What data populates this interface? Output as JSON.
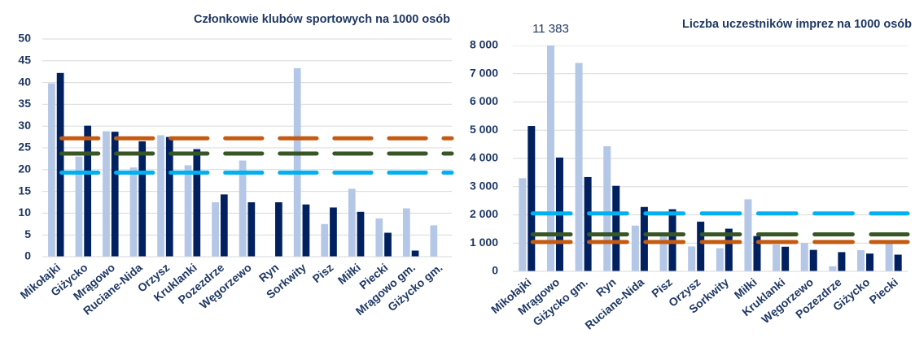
{
  "chart_data": [
    {
      "type": "bar",
      "title": "Członkowie klubów sportowych na 1000 osób",
      "categories": [
        "Mikołajki",
        "Giżycko",
        "Mrągowo",
        "Ruciane-Nida",
        "Orzysz",
        "Kruklanki",
        "Pozezdrze",
        "Węgorzewo",
        "Ryn",
        "Sorkwity",
        "Pisz",
        "Miłki",
        "Piecki",
        "Mrągowo gm.",
        "Giżycko gm."
      ],
      "series": [
        {
          "color": "#b4c7e7",
          "values": [
            39.8,
            23,
            28.8,
            20.5,
            27.9,
            21,
            12.5,
            22.1,
            null,
            43.3,
            7.5,
            15.6,
            8.8,
            11.1,
            7.2
          ]
        },
        {
          "color": "#002060",
          "values": [
            42.2,
            30.1,
            28.7,
            26.5,
            27.5,
            24.7,
            14.3,
            12.5,
            12.5,
            12,
            11.3,
            10.3,
            5.5,
            1.4,
            null
          ]
        }
      ],
      "reference_lines": [
        {
          "color": "#c55a11",
          "value": 27.2
        },
        {
          "color": "#375623",
          "value": 23.7
        },
        {
          "color": "#00b0f0",
          "value": 19.3
        }
      ],
      "ylim": [
        0,
        50
      ],
      "yticks": [
        0,
        5,
        10,
        15,
        20,
        25,
        30,
        35,
        40,
        45,
        50
      ],
      "grid": true
    },
    {
      "type": "bar",
      "title": "Liczba uczestników imprez na 1000 osób",
      "categories": [
        "Mikołajki",
        "Mrągowo",
        "Giżycko gm.",
        "Ryn",
        "Ruciane-Nida",
        "Pisz",
        "Orzysz",
        "Sorkwity",
        "Miłki",
        "Kruklanki",
        "Węgorzewo",
        "Pozezdrze",
        "Giżycko",
        "Piecki"
      ],
      "series": [
        {
          "color": "#b4c7e7",
          "values": [
            3300,
            11383,
            7380,
            4430,
            1620,
            1300,
            880,
            820,
            2550,
            950,
            1000,
            180,
            750,
            1100
          ],
          "value_labels": [
            null,
            "11 383",
            null,
            null,
            null,
            null,
            null,
            null,
            null,
            null,
            null,
            null,
            null,
            null
          ]
        },
        {
          "color": "#002060",
          "values": [
            5150,
            4030,
            3340,
            3030,
            2280,
            2200,
            1760,
            1510,
            1250,
            870,
            760,
            680,
            630,
            590
          ]
        }
      ],
      "reference_lines": [
        {
          "color": "#00b0f0",
          "value": 2050
        },
        {
          "color": "#375623",
          "value": 1310
        },
        {
          "color": "#c55a11",
          "value": 1040
        }
      ],
      "ylim": [
        0,
        8000
      ],
      "yticks": [
        0,
        {
          "value": 1000,
          "label": "1 000"
        },
        {
          "value": 2000,
          "label": "2 000"
        },
        {
          "value": 3000,
          "label": "3 000"
        },
        {
          "value": 4000,
          "label": "4 000"
        },
        {
          "value": 5000,
          "label": "5 000"
        },
        {
          "value": 6000,
          "label": "6 000"
        },
        {
          "value": 7000,
          "label": "7 000"
        },
        {
          "value": 8000,
          "label": "8 000"
        }
      ],
      "grid": true
    }
  ]
}
